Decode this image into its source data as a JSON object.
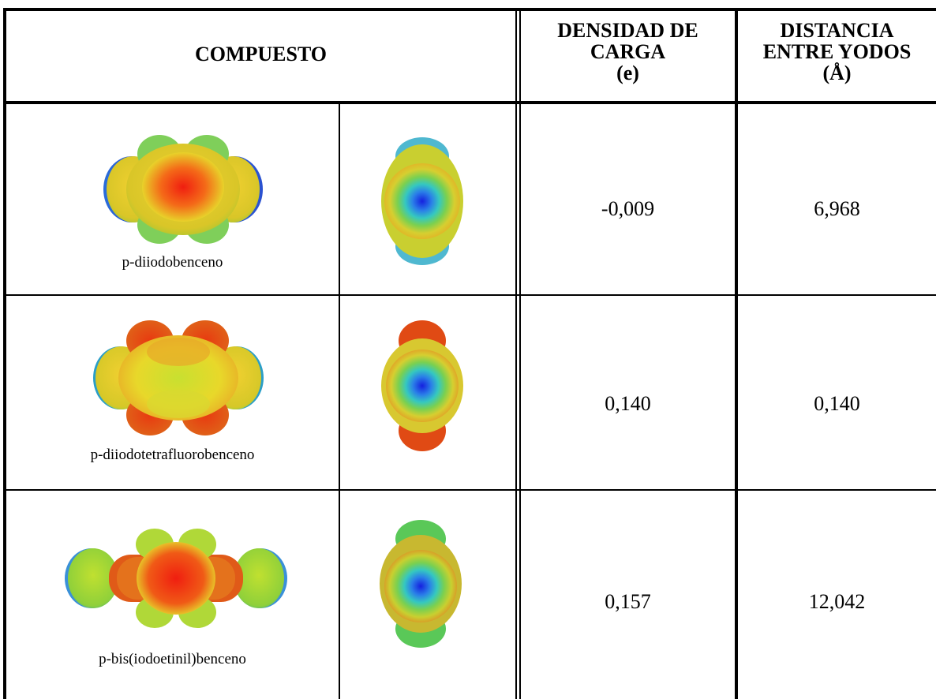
{
  "table": {
    "headers": {
      "compuesto": "COMPUESTO",
      "densidad": [
        "DENSIDAD DE",
        "CARGA",
        "(e)"
      ],
      "distancia": [
        "DISTANCIA",
        "ENTRE YODOS",
        "(Å)"
      ]
    },
    "rows": [
      {
        "compuesto": "p-diiodobenceno",
        "densidad": "-0,009",
        "distancia": "6,968"
      },
      {
        "compuesto": "p-diiodotetrafluorobenceno",
        "densidad": "0,140",
        "distancia": "0,140"
      },
      {
        "compuesto": "p-bis(iodoetinil)benceno",
        "densidad": "0,157",
        "distancia": "12,042"
      }
    ]
  }
}
